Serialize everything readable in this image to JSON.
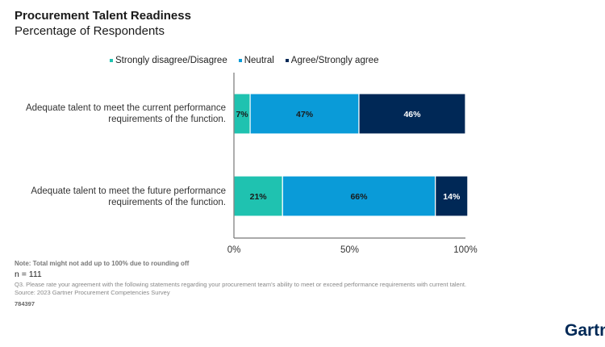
{
  "header": {
    "title": "Procurement Talent Readiness",
    "subtitle": "Percentage of Respondents"
  },
  "chart_data": {
    "type": "bar",
    "orientation": "horizontal",
    "stacked": true,
    "title": "Procurement Talent Readiness",
    "subtitle": "Percentage of Respondents",
    "categories": [
      "Adequate talent to meet the current performance requirements of the function.",
      "Adequate talent to meet the future performance requirements of the function."
    ],
    "category_lines": [
      [
        "Adequate talent to meet the current performance",
        "requirements of the function."
      ],
      [
        "Adequate talent to meet the future performance",
        "requirements of the function."
      ]
    ],
    "series": [
      {
        "name": "Strongly disagree/Disagree",
        "color": "#1fc2b0",
        "label_color": "#1a1a1a",
        "values": [
          7,
          21
        ]
      },
      {
        "name": "Neutral",
        "color": "#0a9bd8",
        "label_color": "#1a1a1a",
        "values": [
          47,
          66
        ]
      },
      {
        "name": "Agree/Strongly agree",
        "color": "#002856",
        "label_color": "#ffffff",
        "values": [
          46,
          14
        ]
      }
    ],
    "xlim": [
      0,
      100
    ],
    "xticks": [
      "0%",
      "50%",
      "100%"
    ],
    "xtick_values": [
      0,
      50,
      100
    ],
    "grid": false,
    "legend_position": "top"
  },
  "footer": {
    "note": "Note: Total might not add up to 100% due to rounding off",
    "n": "n = 111",
    "question": "Q3. Please rate your agreement with the following statements regarding your procurement team's ability to meet or exceed performance requirements with current talent.",
    "source": "Source: 2023 Gartner Procurement Competencies Survey",
    "doc_id": "784397",
    "logo": "Gartner"
  }
}
